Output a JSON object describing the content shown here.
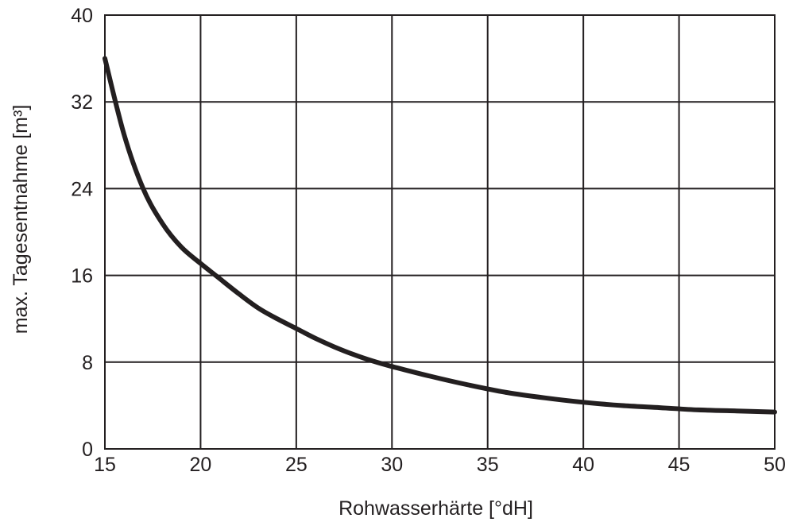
{
  "chart_data": {
    "type": "line",
    "xlabel": "Rohwasserhärte [°dH]",
    "ylabel": "max. Tagesentnahme [m³]",
    "xlim": [
      15,
      50
    ],
    "ylim": [
      0,
      40
    ],
    "x_ticks": [
      15,
      20,
      25,
      30,
      35,
      40,
      45,
      50
    ],
    "y_ticks": [
      0,
      8,
      16,
      24,
      32,
      40
    ],
    "grid": true,
    "colors": {
      "line": "#231f20",
      "grid": "#231f20",
      "text": "#231f20"
    },
    "series": [
      {
        "x": [
          15,
          16,
          17,
          18,
          19,
          20,
          21,
          22,
          23,
          24,
          25,
          26,
          27,
          28,
          29,
          30,
          32,
          34,
          36,
          38,
          40,
          42,
          44,
          46,
          48,
          50
        ],
        "values": [
          36.0,
          29.0,
          24.0,
          20.8,
          18.6,
          17.1,
          15.7,
          14.3,
          13.0,
          12.0,
          11.1,
          10.2,
          9.4,
          8.7,
          8.1,
          7.6,
          6.7,
          5.9,
          5.2,
          4.7,
          4.3,
          4.0,
          3.8,
          3.6,
          3.5,
          3.4
        ]
      }
    ]
  }
}
